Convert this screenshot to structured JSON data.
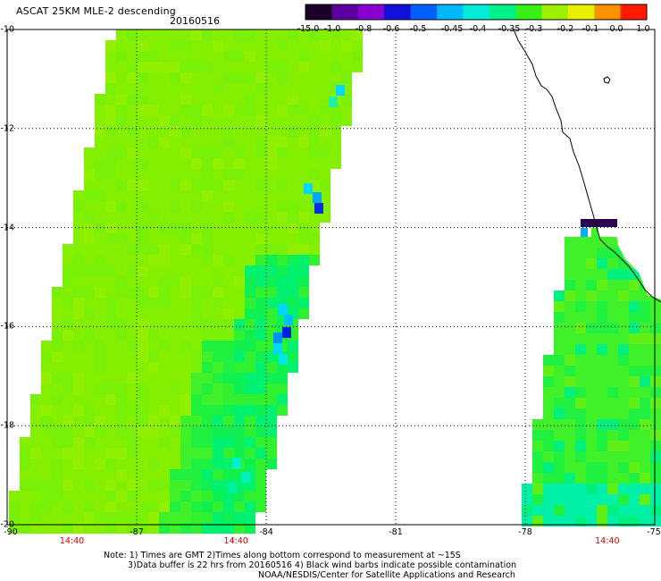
{
  "title": "ASCAT 25KM MLE-2 descending",
  "date": "20160516",
  "colorbar": {
    "labels": [
      "-15.0",
      "-1.0",
      "-0.8",
      "-0.6",
      "-0.5",
      "-0.45",
      "-0.4",
      "-0.35",
      "-0.3",
      "-0.2",
      "-0.1",
      "0.0",
      "1.0"
    ],
    "colors": [
      "#1a0028",
      "#5a00a0",
      "#8a00d0",
      "#1010d8",
      "#0060ff",
      "#00b8ff",
      "#00ecd8",
      "#00f08a",
      "#38f018",
      "#9cf000",
      "#e8f000",
      "#ff9000",
      "#ff1a00"
    ]
  },
  "map": {
    "lat_labels": [
      "-10",
      "-12",
      "-14",
      "-16",
      "-18",
      "-20"
    ],
    "lon_labels": [
      "-90",
      "-87",
      "-84",
      "-81",
      "-78",
      "-75"
    ],
    "lon_range": [
      -90,
      -75
    ],
    "lat_range": [
      -20,
      -10
    ],
    "pass_times": [
      "14:40",
      "14:40",
      "14:40"
    ],
    "pass_time_lon": [
      -88.5,
      -84.7,
      -76.1
    ]
  },
  "notes": [
    "Note: 1) Times are GMT 2)Times along bottom correspond to measurement at ~15S",
    "3)Data buffer is 22 hrs from 20160516 4) Black wind barbs indicate possible contamination",
    "NOAA/NESDIS/Center for Satellite Applications and Research"
  ],
  "colors": {
    "swath_main": "#84f000",
    "swath_alt": "#6cf010",
    "grid": "#3333cc",
    "time_red": "#d40000",
    "coast": "#000000"
  }
}
